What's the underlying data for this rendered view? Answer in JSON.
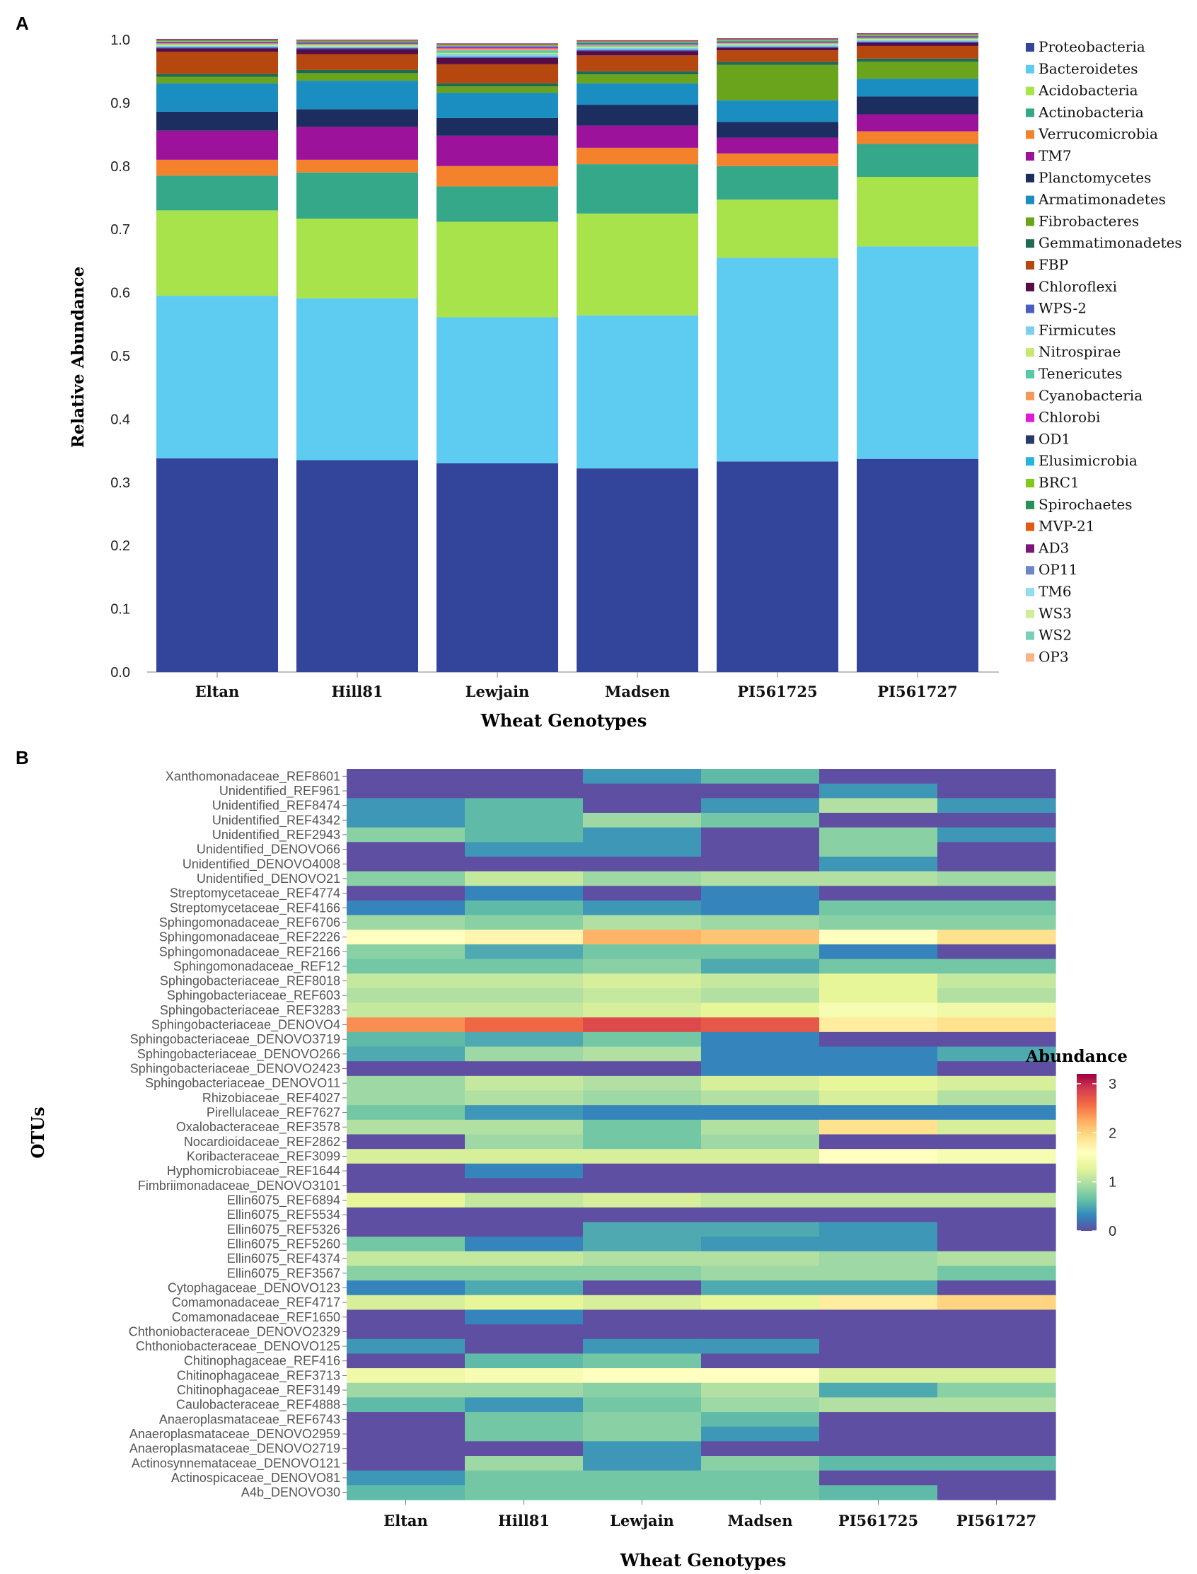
{
  "chart_data": [
    {
      "type": "bar",
      "stacked": true,
      "panel_label": "A",
      "xlabel": "Wheat Genotypes",
      "ylabel": "Relative Abundance",
      "ylim": [
        0,
        1
      ],
      "yticks": [
        "0.0",
        "0.1",
        "0.2",
        "0.3",
        "0.4",
        "0.5",
        "0.6",
        "0.7",
        "0.8",
        "0.9",
        "1.0"
      ],
      "categories": [
        "Eltan",
        "Hill81",
        "Lewjain",
        "Madsen",
        "PI561725",
        "PI561727"
      ],
      "legend_position": "right",
      "series": [
        {
          "name": "Proteobacteria",
          "color": "#33449b",
          "values": [
            0.338,
            0.335,
            0.33,
            0.322,
            0.333,
            0.337
          ]
        },
        {
          "name": "Bacteroidetes",
          "color": "#5ecbf1",
          "values": [
            0.257,
            0.256,
            0.231,
            0.242,
            0.322,
            0.336
          ]
        },
        {
          "name": "Acidobacteria",
          "color": "#a9e34b",
          "values": [
            0.135,
            0.126,
            0.151,
            0.161,
            0.092,
            0.11
          ]
        },
        {
          "name": "Actinobacteria",
          "color": "#34a888",
          "values": [
            0.055,
            0.073,
            0.056,
            0.078,
            0.053,
            0.052
          ]
        },
        {
          "name": "Verrucomicrobia",
          "color": "#f4822c",
          "values": [
            0.025,
            0.02,
            0.032,
            0.026,
            0.02,
            0.02
          ]
        },
        {
          "name": "TM7",
          "color": "#9c129a",
          "values": [
            0.046,
            0.052,
            0.048,
            0.035,
            0.025,
            0.027
          ]
        },
        {
          "name": "Planctomycetes",
          "color": "#1c2e60",
          "values": [
            0.03,
            0.028,
            0.028,
            0.033,
            0.025,
            0.028
          ]
        },
        {
          "name": "Armatimonadetes",
          "color": "#1a8ec0",
          "values": [
            0.045,
            0.045,
            0.04,
            0.034,
            0.034,
            0.028
          ]
        },
        {
          "name": "Fibrobacteres",
          "color": "#6aa31c",
          "values": [
            0.01,
            0.012,
            0.01,
            0.014,
            0.056,
            0.027
          ]
        },
        {
          "name": "Gemmatimonadetes",
          "color": "#1e6a52",
          "values": [
            0.005,
            0.005,
            0.005,
            0.005,
            0.005,
            0.005
          ]
        },
        {
          "name": "FBP",
          "color": "#b6480f",
          "values": [
            0.035,
            0.025,
            0.03,
            0.025,
            0.018,
            0.02
          ]
        },
        {
          "name": "Chloroflexi",
          "color": "#560c46",
          "values": [
            0.005,
            0.008,
            0.01,
            0.007,
            0.004,
            0.005
          ]
        },
        {
          "name": "WPS-2",
          "color": "#4a5ec2",
          "values": [
            0.002,
            0.002,
            0.002,
            0.002,
            0.002,
            0.002
          ]
        },
        {
          "name": "Firmicutes",
          "color": "#7cd0ee",
          "values": [
            0.002,
            0.002,
            0.004,
            0.003,
            0.002,
            0.002
          ]
        },
        {
          "name": "Nitrospirae",
          "color": "#c4e96e",
          "values": [
            0.002,
            0.002,
            0.002,
            0.002,
            0.002,
            0.002
          ]
        },
        {
          "name": "Tenericutes",
          "color": "#56c9a8",
          "values": [
            0.001,
            0.001,
            0.004,
            0.002,
            0.001,
            0.001
          ]
        },
        {
          "name": "Cyanobacteria",
          "color": "#f8975a",
          "values": [
            0.001,
            0.001,
            0.003,
            0.001,
            0.001,
            0.001
          ]
        },
        {
          "name": "Chlorobi",
          "color": "#e21ad8",
          "values": [
            0.001,
            0.001,
            0.002,
            0.001,
            0.001,
            0.001
          ]
        },
        {
          "name": "OD1",
          "color": "#26386c",
          "values": [
            0.001,
            0.001,
            0.001,
            0.001,
            0.001,
            0.001
          ]
        },
        {
          "name": "Elusimicrobia",
          "color": "#26b3dc",
          "values": [
            0.001,
            0.001,
            0.001,
            0.001,
            0.001,
            0.001
          ]
        },
        {
          "name": "BRC1",
          "color": "#83c81f",
          "values": [
            0.001,
            0.001,
            0.001,
            0.001,
            0.001,
            0.001
          ]
        },
        {
          "name": "Spirochaetes",
          "color": "#279157",
          "values": [
            0.001,
            0.001,
            0.001,
            0.001,
            0.001,
            0.001
          ]
        },
        {
          "name": "MVP-21",
          "color": "#e25a12",
          "values": [
            0.001,
            0.001,
            0.001,
            0.001,
            0.001,
            0.001
          ]
        },
        {
          "name": "AD3",
          "color": "#7c1677",
          "values": [
            0.001,
            0.001,
            0.001,
            0.001,
            0.001,
            0.001
          ]
        },
        {
          "name": "OP11",
          "color": "#6d86cb",
          "values": [
            0.0,
            0.0,
            0.0,
            0.0,
            0.0,
            0.0
          ]
        },
        {
          "name": "TM6",
          "color": "#93dcf1",
          "values": [
            0.0,
            0.0,
            0.0,
            0.0,
            0.0,
            0.0
          ]
        },
        {
          "name": "WS3",
          "color": "#d0ee96",
          "values": [
            0.0,
            0.0,
            0.0,
            0.0,
            0.0,
            0.0
          ]
        },
        {
          "name": "WS2",
          "color": "#78d0b9",
          "values": [
            0.0,
            0.0,
            0.0,
            0.0,
            0.0,
            0.0
          ]
        },
        {
          "name": "OP3",
          "color": "#f8b386",
          "values": [
            0.0,
            0.0,
            0.0,
            0.0,
            0.0,
            0.0
          ]
        }
      ]
    },
    {
      "type": "heatmap",
      "panel_label": "B",
      "xlabel": "Wheat Genotypes",
      "ylabel": "OTUs",
      "colorbar_title": "Abundance",
      "colorbar_ticks": [
        "0",
        "1",
        "2",
        "3"
      ],
      "value_range": [
        0,
        3.2
      ],
      "colormap": [
        "#5e4fa2",
        "#3288bd",
        "#66c2a5",
        "#abdda4",
        "#e6f598",
        "#ffffbf",
        "#fee08b",
        "#fdae61",
        "#f46d43",
        "#d53e4f",
        "#9e0142"
      ],
      "columns": [
        "Eltan",
        "Hill81",
        "Lewjain",
        "Madsen",
        "PI561725",
        "PI561727"
      ],
      "rows": [
        "Xanthomonadaceae_REF8601",
        "Unidentified_REF961",
        "Unidentified_REF8474",
        "Unidentified_REF4342",
        "Unidentified_REF2943",
        "Unidentified_DENOVO66",
        "Unidentified_DENOVO4008",
        "Unidentified_DENOVO21",
        "Streptomycetaceae_REF4774",
        "Streptomycetaceae_REF4166",
        "Sphingomonadaceae_REF6706",
        "Sphingomonadaceae_REF2226",
        "Sphingomonadaceae_REF2166",
        "Sphingomonadaceae_REF12",
        "Sphingobacteriaceae_REF8018",
        "Sphingobacteriaceae_REF603",
        "Sphingobacteriaceae_REF3283",
        "Sphingobacteriaceae_DENOVO4",
        "Sphingobacteriaceae_DENOVO3719",
        "Sphingobacteriaceae_DENOVO266",
        "Sphingobacteriaceae_DENOVO2423",
        "Sphingobacteriaceae_DENOVO11",
        "Rhizobiaceae_REF4027",
        "Pirellulaceae_REF7627",
        "Oxalobacteraceae_REF3578",
        "Nocardioidaceae_REF2862",
        "Koribacteraceae_REF3099",
        "Hyphomicrobiaceae_REF1644",
        "Fimbriimonadaceae_DENOVO3101",
        "Ellin6075_REF6894",
        "Ellin6075_REF5534",
        "Ellin6075_REF5326",
        "Ellin6075_REF5260",
        "Ellin6075_REF4374",
        "Ellin6075_REF3567",
        "Cytophagaceae_DENOVO123",
        "Comamonadaceae_REF4717",
        "Comamonadaceae_REF1650",
        "Chthoniobacteraceae_DENOVO2329",
        "Chthoniobacteraceae_DENOVO125",
        "Chitinophagaceae_REF416",
        "Chitinophagaceae_REF3713",
        "Chitinophagaceae_REF3149",
        "Caulobacteraceae_REF4888",
        "Anaeroplasmataceae_REF6743",
        "Anaeroplasmataceae_DENOVO2959",
        "Anaeroplasmataceae_DENOVO2719",
        "Actinosynnemataceae_DENOVO121",
        "Actinospicaceae_DENOVO81",
        "A4b_DENOVO30"
      ],
      "values": [
        [
          0.0,
          0.0,
          0.4,
          0.6,
          0.0,
          0.0
        ],
        [
          0.0,
          0.0,
          0.0,
          0.0,
          0.4,
          0.0
        ],
        [
          0.4,
          0.6,
          0.0,
          0.4,
          1.0,
          0.4
        ],
        [
          0.4,
          0.6,
          0.9,
          0.7,
          0.0,
          0.0
        ],
        [
          0.8,
          0.6,
          0.4,
          0.0,
          0.8,
          0.4
        ],
        [
          0.0,
          0.4,
          0.4,
          0.0,
          0.8,
          0.0
        ],
        [
          0.0,
          0.0,
          0.0,
          0.0,
          0.4,
          0.0
        ],
        [
          0.8,
          1.1,
          0.9,
          1.0,
          1.0,
          0.9
        ],
        [
          0.0,
          0.3,
          0.0,
          0.3,
          0.0,
          0.0
        ],
        [
          0.3,
          0.6,
          0.4,
          0.3,
          0.7,
          0.7
        ],
        [
          0.9,
          0.8,
          1.0,
          0.9,
          0.8,
          0.8
        ],
        [
          1.6,
          1.7,
          2.2,
          2.1,
          1.6,
          1.9
        ],
        [
          0.8,
          0.5,
          0.7,
          0.7,
          0.3,
          0.0
        ],
        [
          0.7,
          0.7,
          0.8,
          0.5,
          0.7,
          0.7
        ],
        [
          1.1,
          1.1,
          1.2,
          1.1,
          1.3,
          1.1
        ],
        [
          1.0,
          1.0,
          1.1,
          1.0,
          1.3,
          1.0
        ],
        [
          1.1,
          1.1,
          1.2,
          1.3,
          1.5,
          1.4
        ],
        [
          2.4,
          2.6,
          2.8,
          2.7,
          1.8,
          1.9
        ],
        [
          0.6,
          0.5,
          0.7,
          0.3,
          0.0,
          0.0
        ],
        [
          0.5,
          0.9,
          1.0,
          0.3,
          0.3,
          0.5
        ],
        [
          0.0,
          0.0,
          0.0,
          0.3,
          0.3,
          0.0
        ],
        [
          0.9,
          1.1,
          1.0,
          1.2,
          1.3,
          1.2
        ],
        [
          0.9,
          1.0,
          0.9,
          1.0,
          1.2,
          1.0
        ],
        [
          0.7,
          0.4,
          0.3,
          0.3,
          0.3,
          0.3
        ],
        [
          1.0,
          1.0,
          0.7,
          1.0,
          1.9,
          1.2
        ],
        [
          0.0,
          0.9,
          0.7,
          0.9,
          0.0,
          0.0
        ],
        [
          1.2,
          1.2,
          1.2,
          1.2,
          1.6,
          1.5
        ],
        [
          0.0,
          0.3,
          0.0,
          0.0,
          0.0,
          0.0
        ],
        [
          0.0,
          0.0,
          0.0,
          0.0,
          0.0,
          0.0
        ],
        [
          1.3,
          1.1,
          1.2,
          1.1,
          1.1,
          1.1
        ],
        [
          0.0,
          0.0,
          0.0,
          0.0,
          0.0,
          0.0
        ],
        [
          0.0,
          0.0,
          0.5,
          0.5,
          0.4,
          0.0
        ],
        [
          0.7,
          0.3,
          0.5,
          0.4,
          0.4,
          0.0
        ],
        [
          1.1,
          1.1,
          1.0,
          1.0,
          0.9,
          1.0
        ],
        [
          0.8,
          0.8,
          0.8,
          0.9,
          0.9,
          0.7
        ],
        [
          0.3,
          0.5,
          0.0,
          0.5,
          0.5,
          0.0
        ],
        [
          1.2,
          1.3,
          1.2,
          1.3,
          1.8,
          2.0
        ],
        [
          0.0,
          0.3,
          0.0,
          0.0,
          0.0,
          0.0
        ],
        [
          0.0,
          0.0,
          0.0,
          0.0,
          0.0,
          0.0
        ],
        [
          0.4,
          0.0,
          0.4,
          0.4,
          0.0,
          0.0
        ],
        [
          0.0,
          0.6,
          0.7,
          0.0,
          0.0,
          0.0
        ],
        [
          1.4,
          1.5,
          1.6,
          1.6,
          1.2,
          1.2
        ],
        [
          0.9,
          0.9,
          0.8,
          1.0,
          0.5,
          0.8
        ],
        [
          0.6,
          0.4,
          0.7,
          0.9,
          1.0,
          1.0
        ],
        [
          0.0,
          0.7,
          0.8,
          0.6,
          0.0,
          0.0
        ],
        [
          0.0,
          0.7,
          0.8,
          0.4,
          0.0,
          0.0
        ],
        [
          0.0,
          0.0,
          0.4,
          0.0,
          0.0,
          0.0
        ],
        [
          0.0,
          0.9,
          0.4,
          0.8,
          0.6,
          0.6
        ],
        [
          0.4,
          0.7,
          0.7,
          0.7,
          0.0,
          0.0
        ],
        [
          0.6,
          0.7,
          0.7,
          0.7,
          0.6,
          0.0
        ]
      ]
    }
  ]
}
